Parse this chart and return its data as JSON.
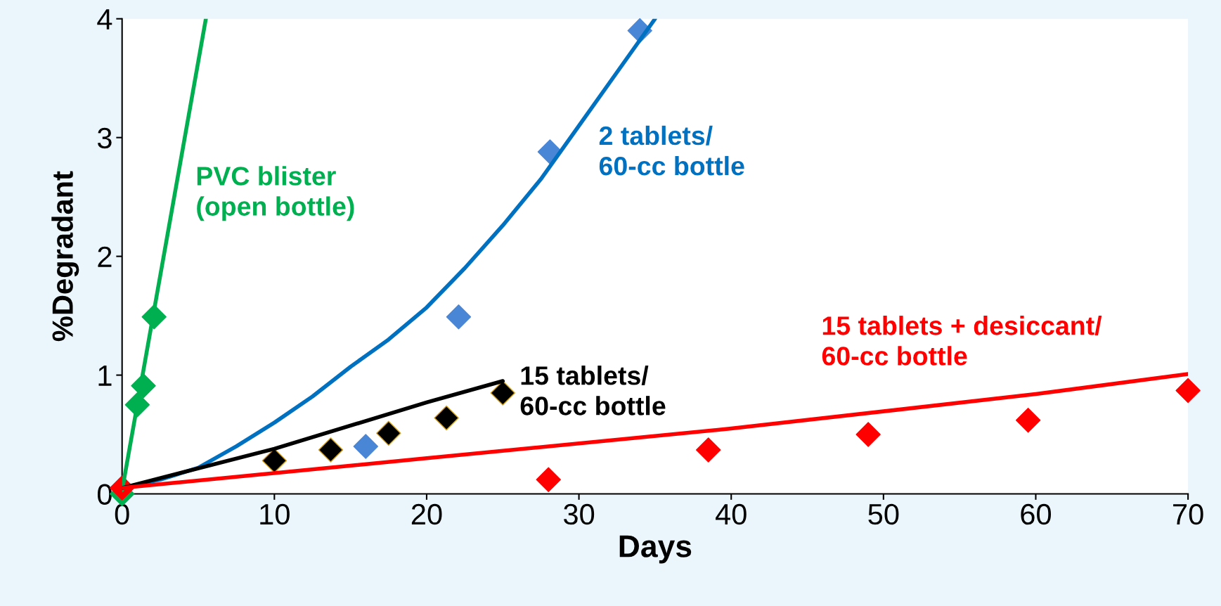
{
  "chart_data": {
    "type": "scatter",
    "xlabel": "Days",
    "ylabel": "%Degradant",
    "xlim": [
      0,
      70
    ],
    "ylim": [
      0,
      4
    ],
    "xticks": [
      0,
      10,
      20,
      30,
      40,
      50,
      60,
      70
    ],
    "yticks": [
      0,
      1,
      2,
      3,
      4
    ],
    "grid": false,
    "marker": "diamond",
    "series": [
      {
        "type": "line",
        "color": "#00b050",
        "x": [
          0,
          5.5
        ],
        "values": [
          0.03,
          4.0
        ],
        "line_style": "solid",
        "marker": "none"
      },
      {
        "name": "PVC blister\n(open bottle)",
        "color": "#00b050",
        "x": [
          0,
          1,
          1.4,
          2.1
        ],
        "values": [
          0,
          0.75,
          0.91,
          1.49
        ]
      },
      {
        "type": "line",
        "color": "#0070c0",
        "x": [
          0,
          2.5,
          5,
          7.5,
          10,
          12.5,
          15,
          17.5,
          20,
          22.5,
          25,
          27.5,
          30,
          32.5,
          35
        ],
        "values": [
          0.05,
          0.12,
          0.22,
          0.4,
          0.6,
          0.82,
          1.07,
          1.3,
          1.57,
          1.9,
          2.26,
          2.65,
          3.1,
          3.55,
          4.0
        ],
        "line_style": "solid",
        "marker": "none"
      },
      {
        "name": "2 tablets/\n60-cc bottle",
        "color": "#4a86d6",
        "x": [
          16,
          22.1,
          28.1,
          34
        ],
        "values": [
          0.4,
          1.49,
          2.88,
          3.9
        ]
      },
      {
        "type": "line",
        "color": "#000000",
        "x": [
          0,
          10,
          20,
          25
        ],
        "values": [
          0.05,
          0.38,
          0.77,
          0.95
        ],
        "line_style": "solid",
        "marker": "none"
      },
      {
        "name": "15 tablets/\n60-cc bottle",
        "color": "#000000",
        "x": [
          10,
          13.7,
          17.5,
          21.3,
          25
        ],
        "values": [
          0.28,
          0.37,
          0.51,
          0.64,
          0.85
        ]
      },
      {
        "type": "line",
        "color": "#ff0000",
        "x": [
          0,
          20,
          40,
          60,
          70
        ],
        "values": [
          0.05,
          0.3,
          0.55,
          0.84,
          1.01
        ],
        "line_style": "solid",
        "marker": "none"
      },
      {
        "name": "15 tablets + desiccant/\n60-cc bottle",
        "color": "#ff0000",
        "x": [
          0,
          28,
          38.5,
          49,
          59.5,
          70
        ],
        "values": [
          0.05,
          0.12,
          0.37,
          0.5,
          0.62,
          0.87
        ]
      }
    ]
  }
}
